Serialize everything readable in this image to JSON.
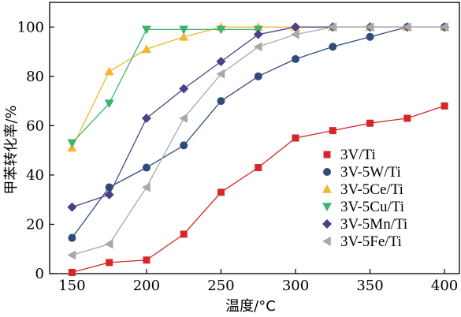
{
  "chart_data": {
    "type": "line",
    "title": "",
    "xlabel": "温度/°C",
    "ylabel": "甲苯转化率/%",
    "xlim": [
      135,
      410
    ],
    "ylim": [
      0,
      110
    ],
    "x_ticks": [
      150,
      200,
      250,
      300,
      350,
      400
    ],
    "y_ticks": [
      0,
      20,
      40,
      60,
      80,
      100
    ],
    "x_tick_labels": [
      "150",
      "200",
      "250",
      "300",
      "350",
      "400"
    ],
    "y_tick_labels": [
      "0",
      "20",
      "40",
      "60",
      "80",
      "100"
    ],
    "grid": false,
    "legend_position": "bottom-right",
    "series": [
      {
        "name": "3V/Ti",
        "color": "#d62728",
        "marker": "square",
        "x": [
          150,
          175,
          200,
          225,
          250,
          275,
          300,
          325,
          350,
          375,
          400
        ],
        "values": [
          0.5,
          4.5,
          5.5,
          16,
          33,
          43,
          55,
          58,
          61,
          63,
          68
        ]
      },
      {
        "name": "3V-5W/Ti",
        "color": "#2f4b7c",
        "marker": "circle",
        "x": [
          150,
          175,
          200,
          225,
          250,
          275,
          300,
          325,
          350,
          375,
          400
        ],
        "values": [
          14.5,
          35,
          43,
          52,
          70,
          80,
          87,
          92,
          96,
          100,
          100
        ]
      },
      {
        "name": "3V-5Ce/Ti",
        "color": "#f2b632",
        "marker": "triangle-up",
        "x": [
          150,
          175,
          200,
          225,
          250,
          275,
          300,
          325,
          350,
          375,
          400
        ],
        "values": [
          51,
          82,
          91,
          96,
          100,
          100,
          100,
          100,
          100,
          100,
          100
        ]
      },
      {
        "name": "3V-5Cu/Ti",
        "color": "#3cb371",
        "marker": "triangle-down",
        "x": [
          150,
          175,
          200,
          225,
          250,
          275
        ],
        "values": [
          53,
          69,
          99,
          99,
          99,
          99
        ]
      },
      {
        "name": "3V-5Mn/Ti",
        "color": "#4b3f8a",
        "marker": "diamond",
        "x": [
          150,
          175,
          200,
          225,
          250,
          275,
          300,
          325,
          350,
          375,
          400
        ],
        "values": [
          27,
          32,
          63,
          75,
          86,
          97,
          100,
          100,
          100,
          100,
          100
        ]
      },
      {
        "name": "3V-5Fe/Ti",
        "color": "#a8a8a8",
        "marker": "triangle-left",
        "x": [
          150,
          175,
          200,
          225,
          250,
          275,
          300,
          325,
          350,
          375,
          400
        ],
        "values": [
          7.5,
          12,
          35,
          63,
          81,
          92,
          97,
          100,
          100,
          100,
          100
        ]
      }
    ]
  }
}
